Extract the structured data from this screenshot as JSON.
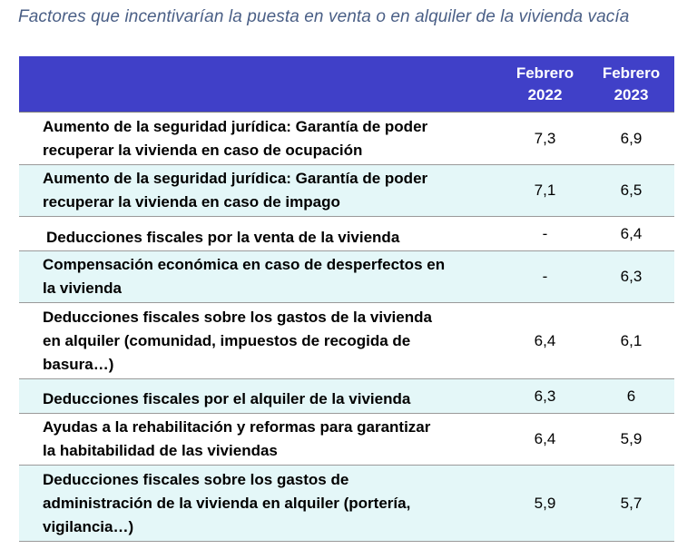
{
  "title": "Factores que incentivarían la puesta en venta o en alquiler de la vivienda vacía",
  "colors": {
    "title": "#4a5f86",
    "header_bg": "#4040c8",
    "header_text": "#ffffff",
    "shaded_row": "#e4f7f8",
    "border": "#9a9a9a"
  },
  "table": {
    "columns": [
      {
        "line1": "",
        "line2": ""
      },
      {
        "line1": "Febrero",
        "line2": "2022"
      },
      {
        "line1": "Febrero",
        "line2": "2023"
      }
    ],
    "rows": [
      {
        "lines": [
          "Aumento de la seguridad jurídica: Garantía de poder",
          "recuperar la vivienda en caso de ocupación"
        ],
        "feb2022": "7,3",
        "feb2023": "6,9"
      },
      {
        "lines": [
          "Aumento de la seguridad jurídica: Garantía de poder",
          "recuperar la vivienda en caso de impago"
        ],
        "feb2022": "7,1",
        "feb2023": "6,5"
      },
      {
        "lines": [
          "Deducciones fiscales por la venta de la vivienda"
        ],
        "feb2022": "-",
        "feb2023": "6,4"
      },
      {
        "lines": [
          "Compensación económica en caso de desperfectos en",
          "la vivienda"
        ],
        "feb2022": "-",
        "feb2023": "6,3"
      },
      {
        "lines": [
          "Deducciones fiscales sobre los gastos de la vivienda",
          "en alquiler (comunidad, impuestos de recogida de",
          "basura…)"
        ],
        "feb2022": "6,4",
        "feb2023": "6,1"
      },
      {
        "lines": [
          "Deducciones fiscales por el alquiler de la vivienda"
        ],
        "feb2022": "6,3",
        "feb2023": "6"
      },
      {
        "lines": [
          "Ayudas a la rehabilitación y reformas para garantizar",
          "la habitabilidad de las viviendas"
        ],
        "feb2022": "6,4",
        "feb2023": "5,9"
      },
      {
        "lines": [
          "Deducciones fiscales sobre los gastos de",
          "administración de la vivienda en alquiler (portería,",
          "vigilancia…)"
        ],
        "feb2022": "5,9",
        "feb2023": "5,7"
      }
    ]
  },
  "chart_data": {
    "type": "table",
    "title": "Factores que incentivarían la puesta en venta o en alquiler de la vivienda vacía",
    "columns": [
      "",
      "Febrero 2022",
      "Febrero 2023"
    ],
    "rows": [
      [
        "Aumento de la seguridad jurídica: Garantía de poder recuperar la vivienda en caso de ocupación",
        "7,3",
        "6,9"
      ],
      [
        "Aumento de la seguridad jurídica: Garantía de poder recuperar la vivienda en caso de impago",
        "7,1",
        "6,5"
      ],
      [
        "Deducciones fiscales por la venta de la vivienda",
        "-",
        "6,4"
      ],
      [
        "Compensación económica en caso de desperfectos en la vivienda",
        "-",
        "6,3"
      ],
      [
        "Deducciones fiscales sobre los gastos de la vivienda en alquiler (comunidad, impuestos de recogida de basura…)",
        "6,4",
        "6,1"
      ],
      [
        "Deducciones fiscales por el alquiler de la vivienda",
        "6,3",
        "6"
      ],
      [
        "Ayudas a la rehabilitación y reformas para garantizar la habitabilidad de las viviendas",
        "6,4",
        "5,9"
      ],
      [
        "Deducciones fiscales sobre los gastos de administración de la vivienda en alquiler (portería, vigilancia…)",
        "5,9",
        "5,7"
      ]
    ]
  }
}
